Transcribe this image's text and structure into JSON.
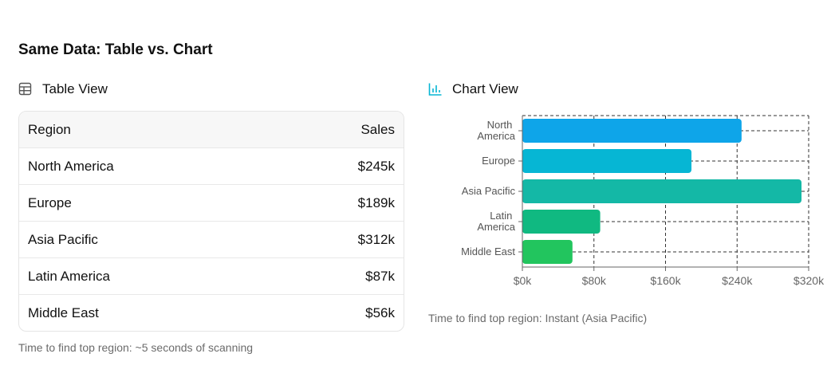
{
  "title": "Same Data: Table vs. Chart",
  "table_heading": "Table View",
  "table": {
    "header": [
      "Region",
      "Sales"
    ],
    "rows": [
      [
        "North America",
        "$245k"
      ],
      [
        "Europe",
        "$189k"
      ],
      [
        "Asia Pacific",
        "$312k"
      ],
      [
        "Latin America",
        "$87k"
      ],
      [
        "Middle East",
        "$56k"
      ]
    ]
  },
  "table_note": "Time to find top region: ~5 seconds of scanning",
  "chart_heading": "Chart View",
  "chart_data": {
    "type": "barh",
    "categories": [
      "North America",
      "Europe",
      "Asia Pacific",
      "Latin America",
      "Middle East"
    ],
    "values": [
      245,
      189,
      312,
      87,
      56
    ],
    "colors": [
      "#0ea5e9",
      "#06b6d4",
      "#14b8a6",
      "#10b981",
      "#22c55e"
    ],
    "xlim": [
      0,
      320
    ],
    "xticks": [
      {
        "value": 0,
        "label": "$0k"
      },
      {
        "value": 80,
        "label": "$80k"
      },
      {
        "value": 160,
        "label": "$160k"
      },
      {
        "value": 240,
        "label": "$240k"
      },
      {
        "value": 320,
        "label": "$320k"
      }
    ],
    "grid": true
  },
  "chart_note": "Time to find top region: Instant (Asia Pacific)"
}
